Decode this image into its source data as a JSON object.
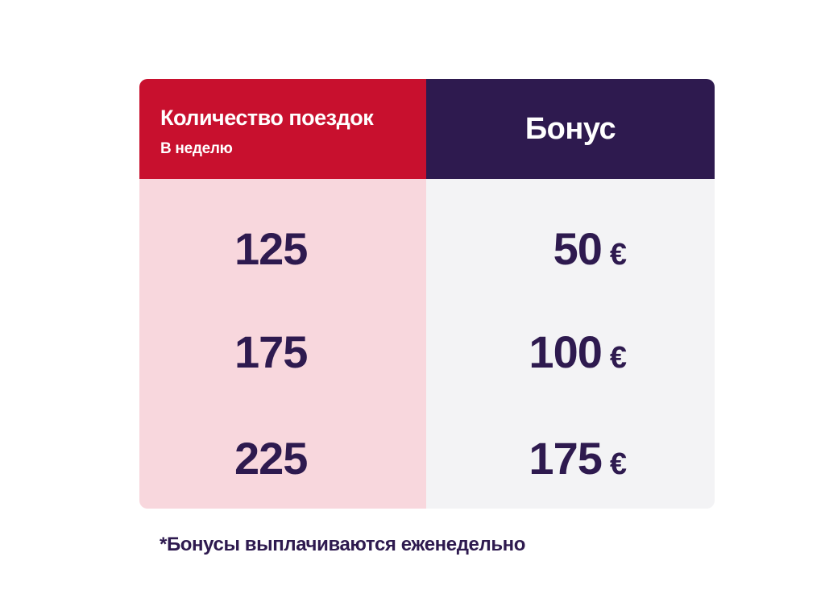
{
  "table": {
    "left_header": {
      "title": "Количество поездок",
      "subtitle": "В неделю"
    },
    "right_header": {
      "title": "Бонус"
    },
    "rows": [
      {
        "trips": "125",
        "bonus": "50",
        "currency": "€"
      },
      {
        "trips": "175",
        "bonus": "100",
        "currency": "€"
      },
      {
        "trips": "225",
        "bonus": "175",
        "currency": "€"
      }
    ]
  },
  "footnote": "*Бонусы выплачиваются еженедельно",
  "colors": {
    "header_left": "#c8102e",
    "header_right": "#2e1a4f",
    "body_left": "#f8d7dd",
    "body_right": "#f3f3f5",
    "text_dark": "#2e1a4f",
    "text_light": "#ffffff"
  }
}
